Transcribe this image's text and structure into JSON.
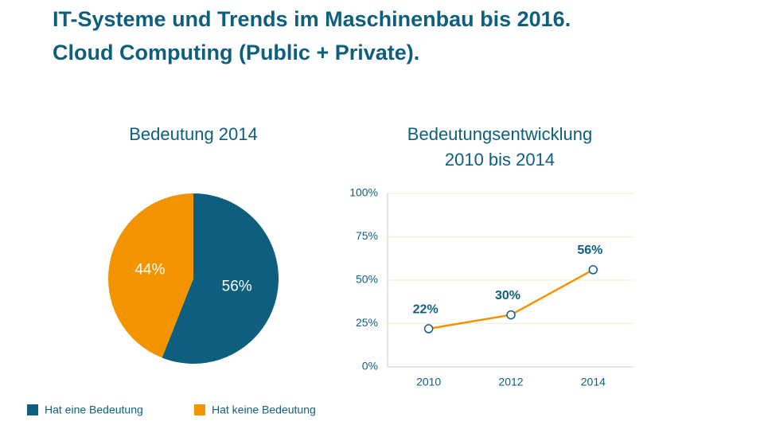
{
  "title": "IT-Systeme und Trends im Maschinenbau bis 2016.",
  "subtitle": "Cloud Computing (Public + Private).",
  "chart_data": [
    {
      "type": "pie",
      "title": "Bedeutung 2014",
      "categories": [
        "Hat eine Bedeutung",
        "Hat keine Bedeutung"
      ],
      "values": [
        56,
        44
      ],
      "value_labels": [
        "56%",
        "44%"
      ],
      "colors": [
        "#0e5f7e",
        "#f29400"
      ],
      "legend": "bottom"
    },
    {
      "type": "line",
      "title": [
        "Bedeutungsentwicklung",
        "2010 bis 2014"
      ],
      "categories": [
        "2010",
        "2012",
        "2014"
      ],
      "series": [
        {
          "color": "#f29400",
          "values": [
            22,
            30,
            56
          ],
          "value_labels": [
            "22%",
            "30%",
            "56%"
          ]
        }
      ],
      "ylim": [
        0,
        100
      ],
      "yticks": [
        {
          "value": 0,
          "label": "0%"
        },
        {
          "value": 25,
          "label": "25%"
        },
        {
          "value": 50,
          "label": "50%"
        },
        {
          "value": 75,
          "label": "75%"
        },
        {
          "value": 100,
          "label": "100%"
        }
      ],
      "grid": true
    }
  ]
}
